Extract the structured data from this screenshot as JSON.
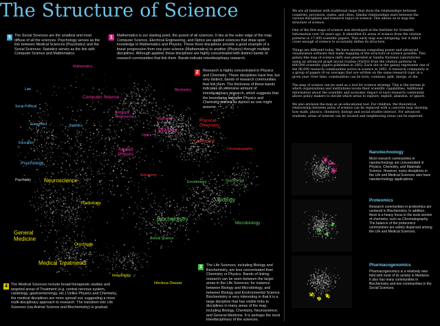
{
  "title": "The Structure of Science",
  "notes": {
    "n5": {
      "num": "5",
      "text": "The Social Sciences are the smallest and most diffuse of all the sciences. Psychology serves as the link between Medical Sciences (Psychiatry) and the Social Sciences. Statistics serves as the link with Computer Science and Mathematics."
    },
    "n1": {
      "num": "1",
      "text": "Mathematics is our starting point, the purest of all sciences. It lies at the outer edge of the map. Computer Science, Electrical Engineering, and Optics are applied sciences that draw upon knowledge in Mathematics and Physics. These three disciplines provide a good example of a linear progression from one pure science (Mathematics) to another (Physics) through multiple disciplines. Although applied, these disciplines are highly concentrated with distinct bands of research communities that link them. Bands indicate interdisciplinary research."
    },
    "n2": {
      "num": "2",
      "text": "Research is highly concentrated in Physics and Chemistry. These disciplines have few, but very distinct, bands of research communities that link them. The thickness of these bands indicates an extensive amount of interdisciplinary research, which suggests that the boundaries between Physics and Chemistry are not as distinct as one might assume."
    },
    "n3": {
      "num": "3",
      "text": "The Life Sciences, including Biology and Biochemistry, are less concentrated than Chemistry or Physics. Bands of linking research can be seen between the larger areas in the Life Sciences; for instance between Biology and Microbiology, and between Biology and Environmental Science. Biochemistry is very interesting in that it is a large discipline that has visible links to disciplines in many areas of the map, including Biology, Chemistry, Neuroscience, and General Medicine. It is perhaps the most interdisciplinary of the sciences."
    },
    "n4": {
      "num": "4",
      "text": "The Medical Sciences include broad therapeutic studies and targeted areas of Treatment (e.g. central nervous system, cardiology, gastroenterology, etc.) Unlike Physics and Chemistry, the medical disciplines are more spread out, suggesting a more multi-disciplinary approach to research. The transition into Life Sciences (via Animal Science and Biochemistry) is gradual."
    }
  },
  "map_labels": {
    "law": "Law",
    "socio_political": "Socio-Political",
    "economics": "Economics",
    "statistics": "Statistics",
    "education": "Education",
    "psychology": "Psychology",
    "psychiatry": "Psychiatry",
    "neuroscience": "Neuroscience",
    "radiology": "Radiology",
    "general_medicine": "General Medicine",
    "oncology": "Oncology",
    "medical_treatments": "Medical Treatments",
    "immunology": "Immunology",
    "infectious_disease": "Infectious Disease",
    "animal_science": "Animal Science",
    "mathematics": "Mathematics",
    "computer_science": "Computer Science",
    "mechanics": "Mechanics",
    "electrical_engineering": "Electrical Engineering",
    "materials": "Materials",
    "physics": "Physics",
    "optics": "Optics",
    "applied_physics": "Applied Physics",
    "physical_chemistry": "Physical Chemistry",
    "chemistry": "Chemistry",
    "chromatography": "Chromatography",
    "astronomy": "Astronomy",
    "environment": "Environment",
    "geoscience": "GeoScience",
    "biology": "Biology",
    "biochemistry": "Biochemistry",
    "microbiology": "Microbiology"
  },
  "right_column": {
    "p1": "We are all familiar with traditional maps that show the relationships between countries, provinces, states, and cities. Similar relationships exist between the various disciplines and research topics in science. This allows us to map the structure of science.",
    "p2": "One of the first maps of science was developed at the Institute for Scientific Information over 30 years ago. It identified 41 areas of science from the citation patterns in 17,000 scientific papers. That early map was intriguing, but it didn't cover enough of science to accurately define its structure.",
    "p3": "Things are different today. We have enormous computing power and advanced visualization software that make mapping of the structure of science possible. This galaxy-like map of science (left) was generated at Sandia National Laboratories using an advanced graph layout routine (VxOrd) from the citation patterns in 800,000 scientific papers published in 2002. Each dot in the galaxy represents one of the 96,000 research communities active in science in 2002. A research community is a group of papers (9 on average) that are written on the same research topic in a given year. Over time, communities can be born, continue, split, merge, or die.",
    "p4": "The map of science can be used as a tool for science strategy. This is the terrain in which organizations and institutions locate their scientific capabilities. Additional information about the scientific and economic impact of each research community allows policy makers to decide which areas to explore, exploit, abandon, or ignore.",
    "p5": "We also envision the map as an educational tool. For children, the theoretical relationship between areas of science can be replaced with a concrete map showing how math, physics, chemistry, biology and social studies interact. For advanced students, areas of interest can be located and neighboring areas can be explored."
  },
  "insets": [
    {
      "title": "Nanotechnology",
      "text": "Most research communities in nanotechnology are concentrated in Physics, Chemistry, and Materials Science. However, many disciplines in the Life and Medical Sciences also have nanotechnology applications.",
      "highlight": "#ff2fa8"
    },
    {
      "title": "Proteomics",
      "text": "Research communities in proteomics are centered in Biochemistry. In addition, there is a heavy focus in the tools section of chemistry, such as Chromatography. The balance of the proteomics communities are widely dispersed among the Life and Medical Sciences.",
      "highlight": "#5fd35f"
    },
    {
      "title": "Pharmacogenomics",
      "text": "Pharmacogenomics is a relatively new field with most of its activity in Medicine. It also has many communities in Biochemistry and two communities in the Social Sciences.",
      "highlight": "#f2e600"
    }
  ],
  "colors": {
    "title": "#6fc3e8",
    "math_physics": "#ff2fa8",
    "chemistry": "#ff3030",
    "life": "#5fd35f",
    "medical": "#f2e600",
    "social": "#66c8ff"
  }
}
